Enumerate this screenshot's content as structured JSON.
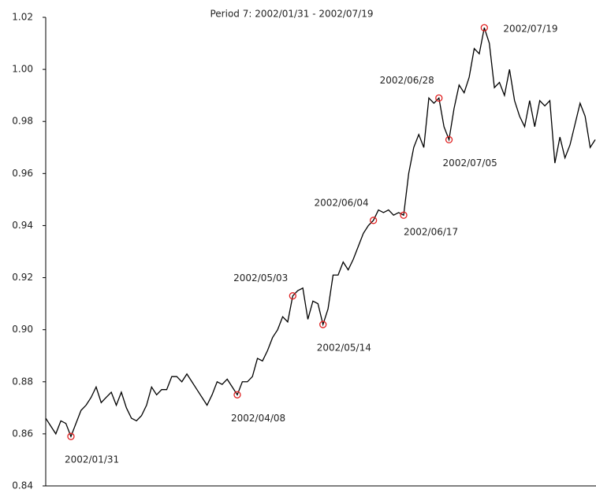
{
  "chart_data": {
    "type": "line",
    "title": "Period 7: 2002/01/31 - 2002/07/19",
    "series": [
      {
        "color": "#000000",
        "values": [
          0.866,
          0.863,
          0.86,
          0.865,
          0.864,
          0.859,
          0.864,
          0.869,
          0.871,
          0.874,
          0.878,
          0.872,
          0.874,
          0.876,
          0.871,
          0.876,
          0.87,
          0.866,
          0.865,
          0.867,
          0.871,
          0.878,
          0.875,
          0.877,
          0.877,
          0.882,
          0.882,
          0.88,
          0.883,
          0.88,
          0.877,
          0.874,
          0.871,
          0.875,
          0.88,
          0.879,
          0.881,
          0.878,
          0.875,
          0.88,
          0.88,
          0.882,
          0.889,
          0.888,
          0.892,
          0.897,
          0.9,
          0.905,
          0.903,
          0.913,
          0.915,
          0.916,
          0.904,
          0.911,
          0.91,
          0.902,
          0.908,
          0.921,
          0.921,
          0.926,
          0.923,
          0.927,
          0.932,
          0.937,
          0.94,
          0.942,
          0.946,
          0.945,
          0.946,
          0.944,
          0.945,
          0.944,
          0.96,
          0.97,
          0.975,
          0.97,
          0.989,
          0.987,
          0.989,
          0.978,
          0.973,
          0.985,
          0.994,
          0.991,
          0.997,
          1.008,
          1.006,
          1.016,
          1.01,
          0.993,
          0.995,
          0.99,
          1.0,
          0.988,
          0.982,
          0.978,
          0.988,
          0.978,
          0.988,
          0.986,
          0.988,
          0.964,
          0.974,
          0.966,
          0.971,
          0.979,
          0.987,
          0.982,
          0.97,
          0.973
        ]
      }
    ],
    "annotations": [
      {
        "label": "2002/01/31",
        "index": 5,
        "position": "below"
      },
      {
        "label": "2002/04/08",
        "index": 38,
        "position": "below"
      },
      {
        "label": "2002/05/03",
        "index": 49,
        "position": "above-left"
      },
      {
        "label": "2002/05/14",
        "index": 55,
        "position": "below"
      },
      {
        "label": "2002/06/04",
        "index": 65,
        "position": "above-left"
      },
      {
        "label": "2002/06/17",
        "index": 71,
        "position": "below-right"
      },
      {
        "label": "2002/06/28",
        "index": 78,
        "position": "above-left"
      },
      {
        "label": "2002/07/05",
        "index": 80,
        "position": "below"
      },
      {
        "label": "2002/07/19",
        "index": 87,
        "position": "right"
      }
    ],
    "marker_color": "#e02020",
    "ylim": [
      0.84,
      1.02
    ],
    "yticks": [
      0.84,
      0.86,
      0.88,
      {
        "value": 0.9,
        "label": "0.90"
      },
      0.92,
      0.94,
      0.96,
      0.98,
      {
        "value": 1.0,
        "label": "1.00"
      },
      1.02
    ]
  }
}
